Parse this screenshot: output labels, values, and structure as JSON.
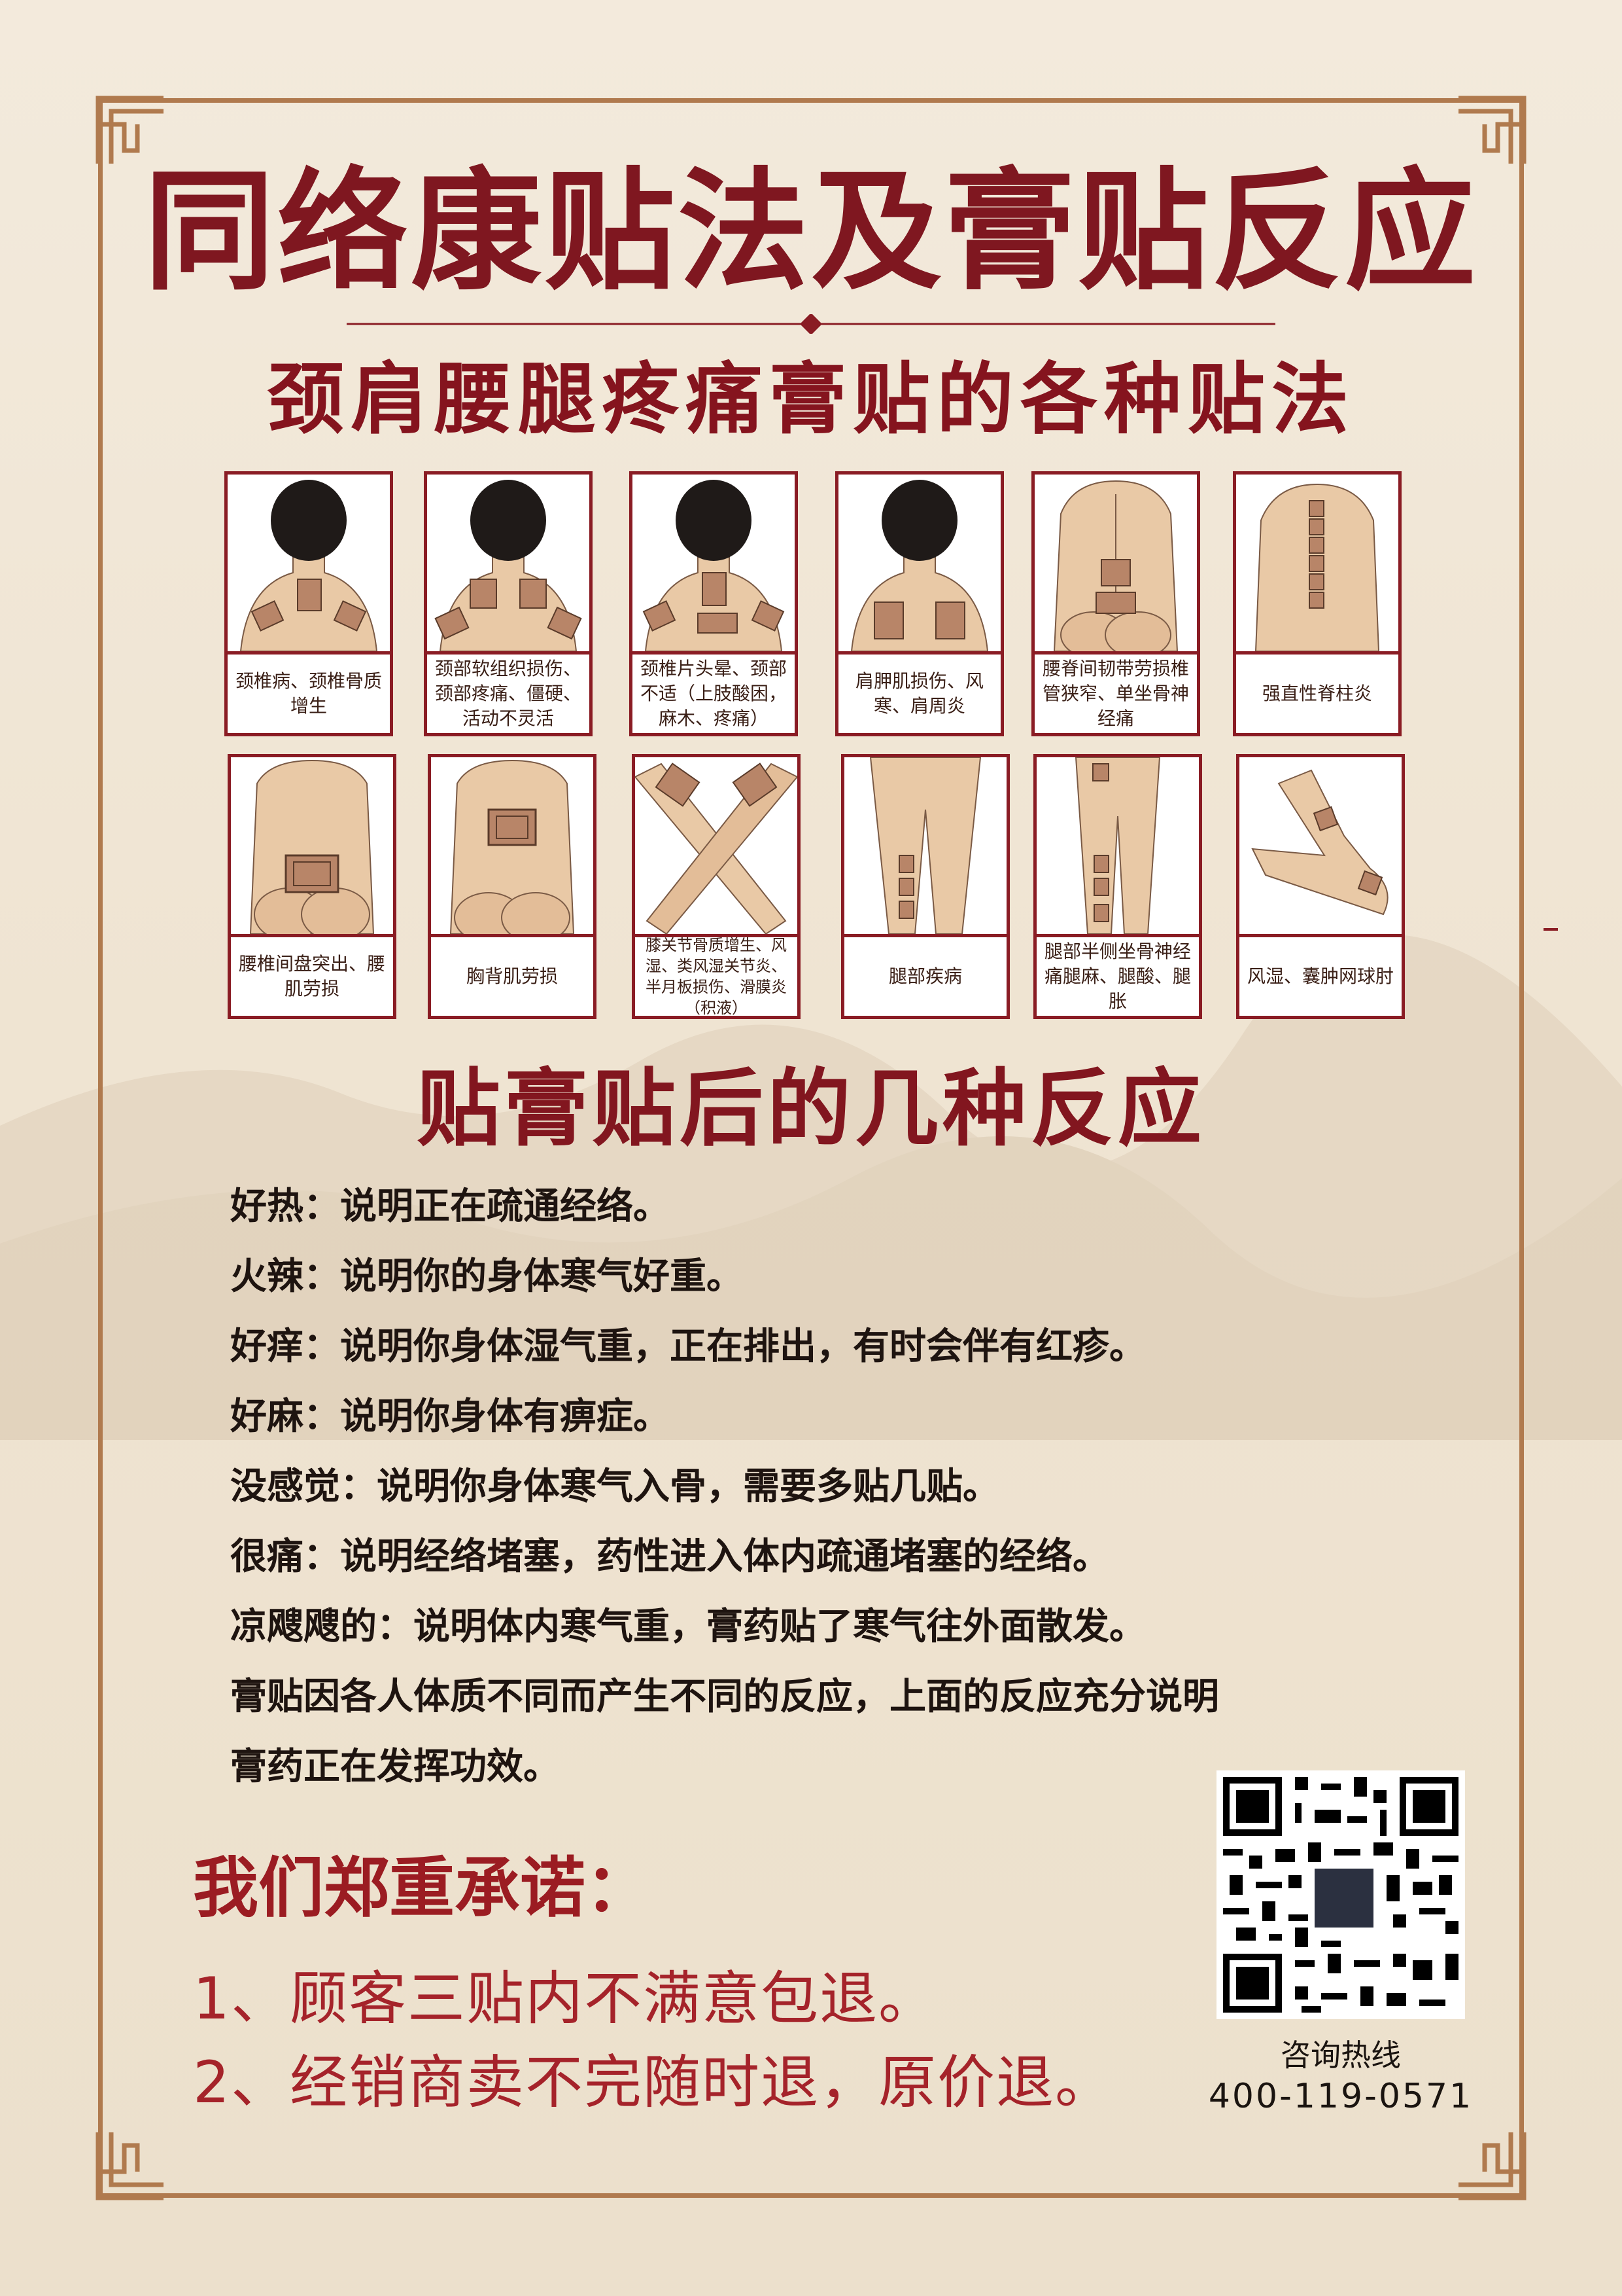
{
  "header": {
    "title": "同络康贴法及膏贴反应",
    "subtitle": "颈肩腰腿疼痛膏贴的各种贴法"
  },
  "methods": {
    "row1": [
      {
        "caption": "颈椎病、颈椎骨质增生",
        "icon": "neck-shoulder-back-figure-icon"
      },
      {
        "caption": "颈部软组织损伤、颈部疼痛、僵硬、活动不灵活",
        "icon": "neck-shoulder-back-figure-icon"
      },
      {
        "caption": "颈椎片头晕、颈部不适（上肢酸困，麻木、疼痛）",
        "icon": "neck-shoulder-back-figure-icon"
      },
      {
        "caption": "肩胛肌损伤、风寒、肩周炎",
        "icon": "neck-shoulder-back-figure-icon"
      },
      {
        "caption": "腰脊间韧带劳损椎管狭窄、单坐骨神经痛",
        "icon": "lower-back-figure-icon"
      },
      {
        "caption": "强直性脊柱炎",
        "icon": "spine-figure-icon"
      }
    ],
    "row2": [
      {
        "caption": "腰椎间盘突出、腰肌劳损",
        "icon": "lower-back-figure-icon"
      },
      {
        "caption": "胸背肌劳损",
        "icon": "upper-back-figure-icon"
      },
      {
        "caption": "膝关节骨质增生、风湿、类风湿关节炎、半月板损伤、滑膜炎（积液）",
        "icon": "knees-figure-icon"
      },
      {
        "caption": "腿部疾病",
        "icon": "legs-figure-icon"
      },
      {
        "caption": "腿部半侧坐骨神经痛腿麻、腿酸、腿胀",
        "icon": "leg-side-figure-icon"
      },
      {
        "caption": "风湿、囊肿网球肘",
        "icon": "elbow-figure-icon"
      }
    ]
  },
  "reactions": {
    "title": "贴膏贴后的几种反应",
    "lines": [
      "好热：说明正在疏通经络。",
      "火辣：说明你的身体寒气好重。",
      "好痒：说明你身体湿气重，正在排出，有时会伴有红疹。",
      "好麻：说明你身体有痹症。",
      "没感觉：说明你身体寒气入骨，需要多贴几贴。",
      "很痛：说明经络堵塞，药性进入体内疏通堵塞的经络。",
      "凉飕飕的：说明体内寒气重，膏药贴了寒气往外面散发。",
      "膏贴因各人体质不同而产生不同的反应，上面的反应充分说明",
      "膏药正在发挥功效。"
    ]
  },
  "promise": {
    "title": "我们郑重承诺：",
    "items": [
      "1、顾客三贴内不满意包退。",
      "2、经销商卖不完随时退，原价退。"
    ]
  },
  "contact": {
    "label": "咨询热线",
    "phone": "400-119-0571"
  },
  "colors": {
    "title": "#7f1720",
    "accent": "#8a1c24",
    "frame": "#b07a4e",
    "skin": "#e9c9a6",
    "patch": "#b88568",
    "hair": "#1f1a18"
  }
}
